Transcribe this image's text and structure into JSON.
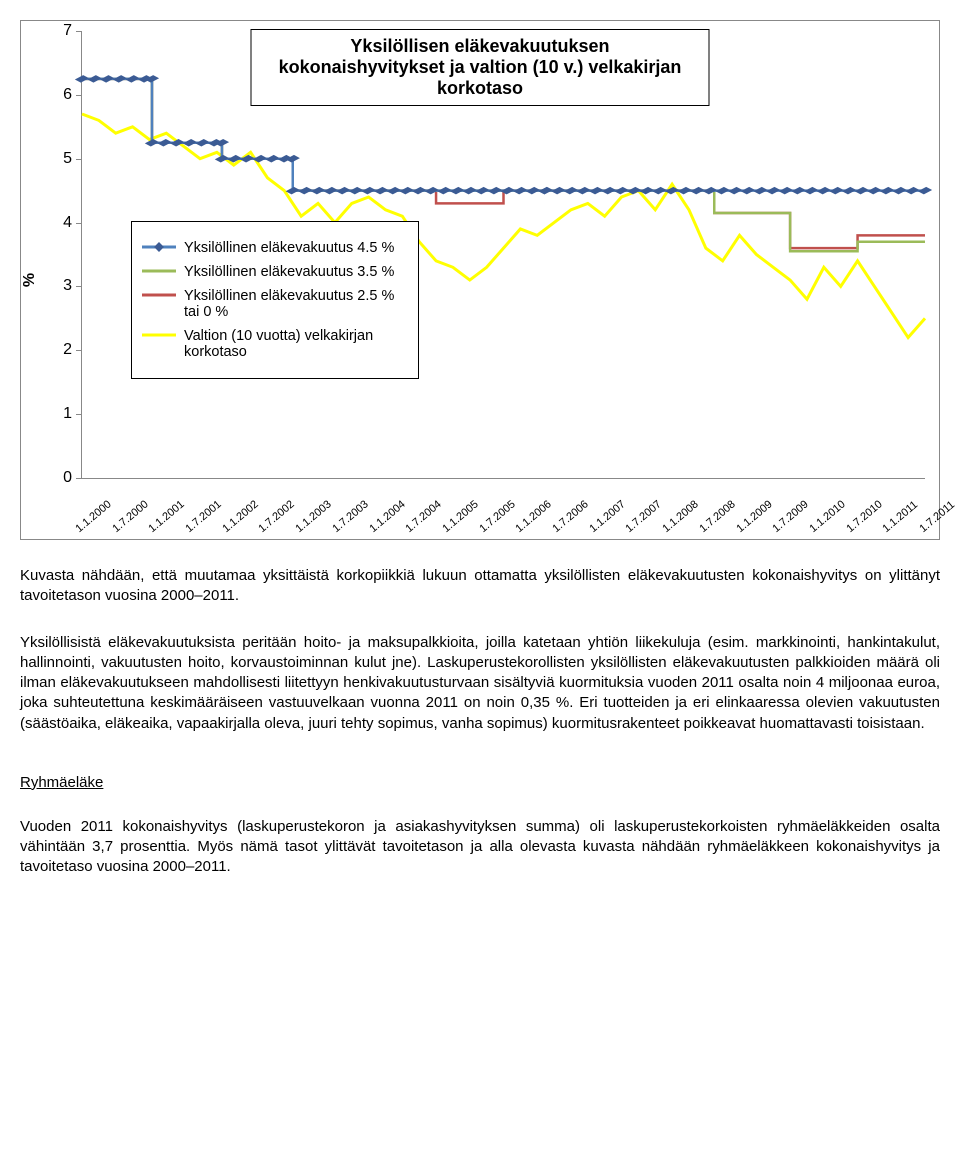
{
  "chart": {
    "type": "line",
    "title": "Yksilöllisen eläkevakuutuksen kokonaishyvitykset ja valtion (10 v.) velkakirjan korkotaso",
    "y_axis_label": "%",
    "ylim": [
      0,
      7
    ],
    "ytick_step": 1,
    "border_color": "#888888",
    "background_color": "#ffffff",
    "title_fontsize": 18,
    "label_fontsize": 16,
    "xlabel_fontsize": 11,
    "x_labels": [
      "1.1.2000",
      "1.7.2000",
      "1.1.2001",
      "1.7.2001",
      "1.1.2002",
      "1.7.2002",
      "1.1.2003",
      "1.7.2003",
      "1.1.2004",
      "1.7.2004",
      "1.1.2005",
      "1.7.2005",
      "1.1.2006",
      "1.7.2006",
      "1.1.2007",
      "1.7.2007",
      "1.1.2008",
      "1.7.2008",
      "1.1.2009",
      "1.7.2009",
      "1.1.2010",
      "1.7.2010",
      "1.1.2011",
      "1.7.2011"
    ],
    "series": [
      {
        "id": "blue",
        "label": "Yksilöllinen eläkevakuutus 4.5 %",
        "color": "#4f81bd",
        "marker": true,
        "marker_color": "#3b5b94",
        "width": 2.5,
        "points": [
          [
            0,
            6.25
          ],
          [
            8.3,
            6.25
          ],
          [
            8.3,
            5.25
          ],
          [
            16.6,
            5.25
          ],
          [
            16.6,
            5.0
          ],
          [
            25,
            5.0
          ],
          [
            25,
            4.5
          ],
          [
            55,
            4.5
          ],
          [
            55,
            4.5
          ],
          [
            100,
            4.5
          ]
        ]
      },
      {
        "id": "green",
        "label": "Yksilöllinen eläkevakuutus 3.5 %",
        "color": "#9bbb59",
        "marker": false,
        "width": 2.5,
        "points": [
          [
            0,
            6.25
          ],
          [
            8.3,
            6.25
          ],
          [
            8.3,
            5.25
          ],
          [
            16.6,
            5.25
          ],
          [
            16.6,
            5.0
          ],
          [
            25,
            5.0
          ],
          [
            25,
            4.5
          ],
          [
            55,
            4.5
          ],
          [
            55,
            4.5
          ],
          [
            75,
            4.5
          ],
          [
            75,
            4.15
          ],
          [
            84,
            4.15
          ],
          [
            84,
            3.55
          ],
          [
            92,
            3.55
          ],
          [
            92,
            3.7
          ],
          [
            100,
            3.7
          ]
        ]
      },
      {
        "id": "red",
        "label": "Yksilöllinen eläkevakuutus 2.5 % tai 0 %",
        "color": "#c0504d",
        "marker": false,
        "width": 2.5,
        "points": [
          [
            0,
            6.25
          ],
          [
            8.3,
            6.25
          ],
          [
            8.3,
            5.25
          ],
          [
            16.6,
            5.25
          ],
          [
            16.6,
            5.0
          ],
          [
            25,
            5.0
          ],
          [
            25,
            4.5
          ],
          [
            42,
            4.5
          ],
          [
            42,
            4.3
          ],
          [
            50,
            4.3
          ],
          [
            50,
            4.5
          ],
          [
            67,
            4.5
          ],
          [
            67,
            4.5
          ],
          [
            75,
            4.5
          ],
          [
            75,
            4.15
          ],
          [
            84,
            4.15
          ],
          [
            84,
            3.6
          ],
          [
            92,
            3.6
          ],
          [
            92,
            3.8
          ],
          [
            100,
            3.8
          ]
        ]
      },
      {
        "id": "yellow",
        "label": "Valtion (10 vuotta) velkakirjan korkotaso",
        "color": "#ffff00",
        "marker": false,
        "width": 3,
        "points": [
          [
            0,
            5.7
          ],
          [
            2,
            5.6
          ],
          [
            4,
            5.4
          ],
          [
            6,
            5.5
          ],
          [
            8,
            5.3
          ],
          [
            10,
            5.4
          ],
          [
            12,
            5.2
          ],
          [
            14,
            5.0
          ],
          [
            16,
            5.1
          ],
          [
            18,
            4.9
          ],
          [
            20,
            5.1
          ],
          [
            22,
            4.7
          ],
          [
            24,
            4.5
          ],
          [
            26,
            4.1
          ],
          [
            28,
            4.3
          ],
          [
            30,
            4.0
          ],
          [
            32,
            4.3
          ],
          [
            34,
            4.4
          ],
          [
            36,
            4.2
          ],
          [
            38,
            4.1
          ],
          [
            40,
            3.7
          ],
          [
            42,
            3.4
          ],
          [
            44,
            3.3
          ],
          [
            46,
            3.1
          ],
          [
            48,
            3.3
          ],
          [
            50,
            3.6
          ],
          [
            52,
            3.9
          ],
          [
            54,
            3.8
          ],
          [
            56,
            4.0
          ],
          [
            58,
            4.2
          ],
          [
            60,
            4.3
          ],
          [
            62,
            4.1
          ],
          [
            64,
            4.4
          ],
          [
            66,
            4.5
          ],
          [
            68,
            4.2
          ],
          [
            70,
            4.6
          ],
          [
            72,
            4.2
          ],
          [
            74,
            3.6
          ],
          [
            76,
            3.4
          ],
          [
            78,
            3.8
          ],
          [
            80,
            3.5
          ],
          [
            82,
            3.3
          ],
          [
            84,
            3.1
          ],
          [
            86,
            2.8
          ],
          [
            88,
            3.3
          ],
          [
            90,
            3.0
          ],
          [
            92,
            3.4
          ],
          [
            94,
            3.0
          ],
          [
            96,
            2.6
          ],
          [
            98,
            2.2
          ],
          [
            100,
            2.5
          ]
        ]
      }
    ],
    "legend": {
      "position": "inside-left",
      "border_color": "#000000",
      "fontsize": 14.5
    }
  },
  "text": {
    "para1": "Kuvasta nähdään, että muutamaa yksittäistä korkopiikkiä lukuun ottamatta yksilöllisten eläkevakuutusten kokonaishyvitys on ylittänyt tavoitetason vuosina 2000–2011.",
    "para2": "Yksilöllisistä eläkevakuutuksista peritään hoito- ja maksupalkkioita, joilla katetaan yhtiön liikekuluja (esim. markkinointi, hankintakulut, hallinnointi, vakuutusten hoito, korvaustoiminnan kulut jne). Laskuperustekorollisten yksilöllisten eläkevakuutusten palkkioiden määrä oli ilman eläkevakuutukseen mahdollisesti liitettyyn henkivakuutusturvaan sisältyviä kuormituksia vuoden 2011 osalta noin 4 miljoonaa euroa, joka suhteutettuna keskimääräiseen vastuuvelkaan vuonna 2011 on noin 0,35 %. Eri tuotteiden ja eri elinkaaressa olevien vakuutusten (säästöaika, eläkeaika, vapaakirjalla oleva, juuri tehty sopimus, vanha sopimus) kuormitusrakenteet poikkeavat huomattavasti toisistaan.",
    "heading": "Ryhmäeläke",
    "para3": "Vuoden 2011 kokonaishyvitys (laskuperustekoron ja asiakashyvityksen summa) oli laskuperustekorkoisten ryhmäeläkkeiden osalta vähintään 3,7 prosenttia. Myös nämä tasot ylittävät tavoitetason ja alla olevasta kuvasta nähdään ryhmäeläkkeen kokonaishyvitys ja tavoitetaso vuosina 2000–2011."
  }
}
